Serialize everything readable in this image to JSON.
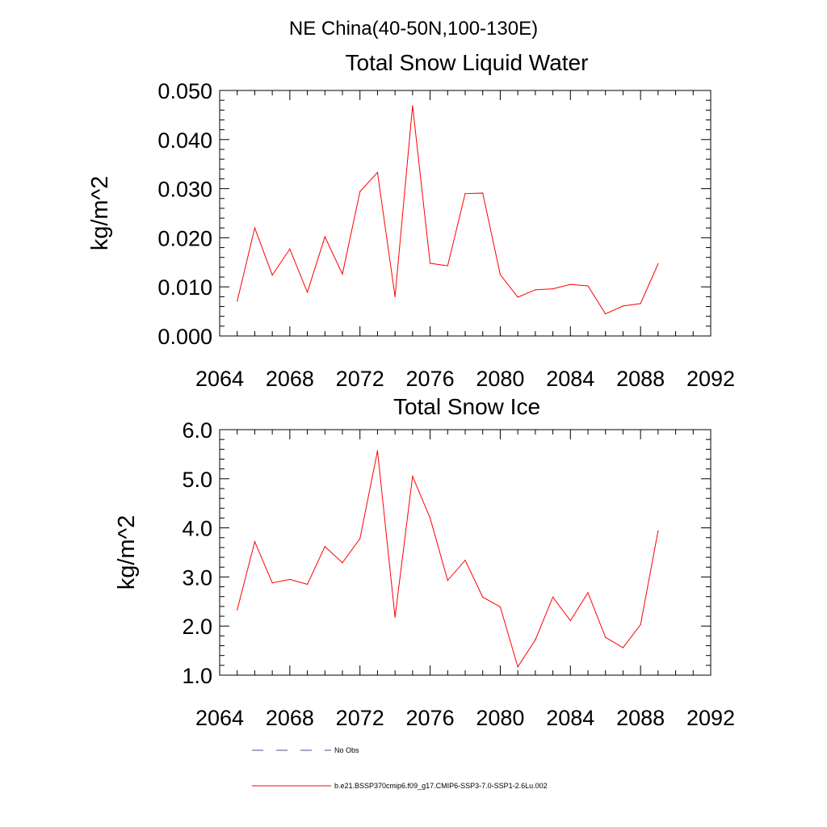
{
  "figure": {
    "title": "NE China(40-50N,100-130E)"
  },
  "legend": [
    {
      "label": "No Obs",
      "style": "dashed",
      "color": "#4b4b8c"
    },
    {
      "label": "b.e21.BSSP370cmip6.f09_g17.CMIP6-SSP3-7.0-SSP1-2.6Lu.002",
      "style": "solid",
      "color": "#ff0000"
    }
  ],
  "chart_data": [
    {
      "type": "line",
      "title": "Total Snow Liquid Water",
      "xlabel": "",
      "ylabel": "kg/m^2",
      "xlim": [
        2064,
        2092
      ],
      "ylim": [
        0.0,
        0.05
      ],
      "xticks": [
        2064,
        2068,
        2072,
        2076,
        2080,
        2084,
        2088,
        2092
      ],
      "yticks": [
        0.0,
        0.01,
        0.02,
        0.03,
        0.04,
        0.05
      ],
      "ytick_labels": [
        "0.000",
        "0.010",
        "0.020",
        "0.030",
        "0.040",
        "0.050"
      ],
      "grid": false,
      "series": [
        {
          "color": "#ff0000",
          "x": [
            2065,
            2066,
            2067,
            2068,
            2069,
            2070,
            2071,
            2072,
            2073,
            2074,
            2075,
            2076,
            2077,
            2078,
            2079,
            2080,
            2081,
            2082,
            2083,
            2084,
            2085,
            2086,
            2087,
            2088,
            2089
          ],
          "y": [
            0.0071,
            0.022,
            0.0124,
            0.0177,
            0.0089,
            0.0202,
            0.0126,
            0.0294,
            0.0333,
            0.008,
            0.0469,
            0.0148,
            0.0143,
            0.029,
            0.0291,
            0.0125,
            0.0079,
            0.0094,
            0.0096,
            0.0105,
            0.0102,
            0.0045,
            0.0061,
            0.0066,
            0.0147
          ]
        }
      ]
    },
    {
      "type": "line",
      "title": "Total Snow Ice",
      "xlabel": "",
      "ylabel": "kg/m^2",
      "xlim": [
        2064,
        2092
      ],
      "ylim": [
        1.0,
        6.0
      ],
      "xticks": [
        2064,
        2068,
        2072,
        2076,
        2080,
        2084,
        2088,
        2092
      ],
      "yticks": [
        1.0,
        2.0,
        3.0,
        4.0,
        5.0,
        6.0
      ],
      "ytick_labels": [
        "1.0",
        "2.0",
        "3.0",
        "4.0",
        "5.0",
        "6.0"
      ],
      "grid": false,
      "series": [
        {
          "color": "#ff0000",
          "x": [
            2065,
            2066,
            2067,
            2068,
            2069,
            2070,
            2071,
            2072,
            2073,
            2074,
            2075,
            2076,
            2077,
            2078,
            2079,
            2080,
            2081,
            2082,
            2083,
            2084,
            2085,
            2086,
            2087,
            2088,
            2089
          ],
          "y": [
            2.33,
            3.72,
            2.88,
            2.95,
            2.85,
            3.62,
            3.29,
            3.78,
            5.57,
            2.18,
            5.05,
            4.2,
            2.93,
            3.34,
            2.59,
            2.39,
            1.17,
            1.72,
            2.59,
            2.11,
            2.68,
            1.77,
            1.56,
            2.03,
            3.94
          ]
        }
      ]
    }
  ]
}
